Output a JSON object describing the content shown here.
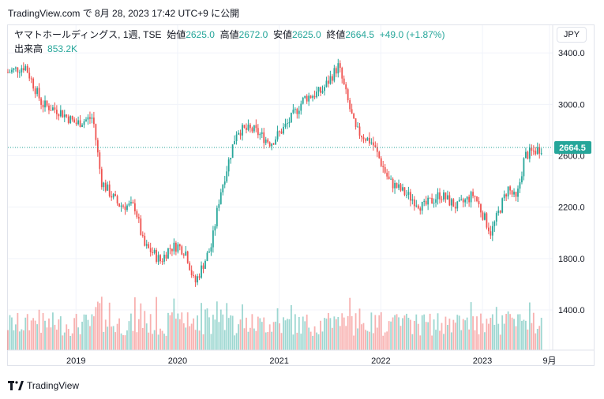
{
  "header": {
    "text": "TradingView.com で 8月 28, 2023 17:42 UTC+9 に公開"
  },
  "legend": {
    "symbol": "ヤマトホールディングス, 1週, TSE",
    "open_label": "始値",
    "open": "2625.0",
    "high_label": "高値",
    "high": "2672.0",
    "low_label": "安値",
    "low": "2625.0",
    "close_label": "終値",
    "close": "2664.5",
    "change": "+49.0 (+1.87%)",
    "volume_label": "出来高",
    "volume": "853.2K"
  },
  "currency_button": "JPY",
  "last_price_label": "2664.5",
  "footer": {
    "brand": "TradingView"
  },
  "colors": {
    "up": "#26a69a",
    "down": "#ef5350",
    "grid": "#f0f3fa",
    "text": "#131722"
  },
  "chart_data": {
    "type": "candlestick",
    "title": "ヤマトホールディングス, 1週, TSE",
    "y_ticks": [
      1400,
      1800,
      2200,
      2600,
      3000,
      3400
    ],
    "y_tick_labels": [
      "1400.0",
      "1800.0",
      "2200.0",
      "2600.0",
      "3000.0",
      "3400.0"
    ],
    "ylim": [
      1130,
      3530
    ],
    "x_ticks": [
      "2019",
      "2020",
      "2021",
      "2022",
      "2023",
      "9月"
    ],
    "last_price": 2664.5,
    "close_series_approx": [
      {
        "date": "2018-05",
        "close": 3250
      },
      {
        "date": "2018-07",
        "close": 3300
      },
      {
        "date": "2018-09",
        "close": 3000
      },
      {
        "date": "2018-11",
        "close": 2950
      },
      {
        "date": "2019-01",
        "close": 2850
      },
      {
        "date": "2019-03",
        "close": 2900
      },
      {
        "date": "2019-04",
        "close": 2400
      },
      {
        "date": "2019-06",
        "close": 2220
      },
      {
        "date": "2019-08",
        "close": 2200
      },
      {
        "date": "2019-09",
        "close": 1900
      },
      {
        "date": "2019-10",
        "close": 1850
      },
      {
        "date": "2019-11",
        "close": 1780
      },
      {
        "date": "2019-12",
        "close": 1880
      },
      {
        "date": "2020-01",
        "close": 1900
      },
      {
        "date": "2020-02",
        "close": 1850
      },
      {
        "date": "2020-03",
        "close": 1600
      },
      {
        "date": "2020-04",
        "close": 1750
      },
      {
        "date": "2020-05",
        "close": 1900
      },
      {
        "date": "2020-06",
        "close": 2300
      },
      {
        "date": "2020-07",
        "close": 2550
      },
      {
        "date": "2020-08",
        "close": 2800
      },
      {
        "date": "2020-10",
        "close": 2800
      },
      {
        "date": "2020-12",
        "close": 2700
      },
      {
        "date": "2021-02",
        "close": 2850
      },
      {
        "date": "2021-04",
        "close": 3050
      },
      {
        "date": "2021-06",
        "close": 3100
      },
      {
        "date": "2021-08",
        "close": 3300
      },
      {
        "date": "2021-10",
        "close": 2800
      },
      {
        "date": "2021-12",
        "close": 2700
      },
      {
        "date": "2022-02",
        "close": 2400
      },
      {
        "date": "2022-04",
        "close": 2300
      },
      {
        "date": "2022-06",
        "close": 2200
      },
      {
        "date": "2022-08",
        "close": 2300
      },
      {
        "date": "2022-10",
        "close": 2200
      },
      {
        "date": "2022-12",
        "close": 2300
      },
      {
        "date": "2023-02",
        "close": 2000
      },
      {
        "date": "2023-04",
        "close": 2350
      },
      {
        "date": "2023-05",
        "close": 2250
      },
      {
        "date": "2023-06",
        "close": 2600
      },
      {
        "date": "2023-08",
        "close": 2664.5
      }
    ],
    "volume_last": "853.2K"
  }
}
